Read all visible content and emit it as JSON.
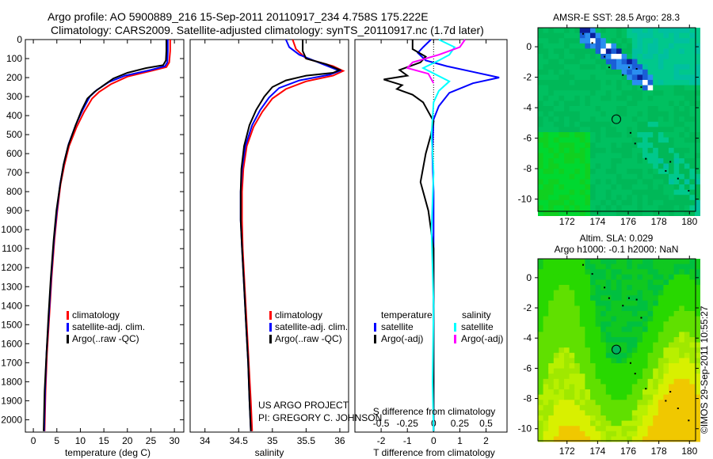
{
  "title_line1": "Argo profile: AO 5900889_216 15-Sep-2011 20110917_234 4.758S 175.222E",
  "title_line2": "Climatology: CARS2009. Satellite-adjusted climatology: synTS_20110917.nc (1.7d later)",
  "credit_line1": "US ARGO PROJECT",
  "credit_line2": "PI: GREGORY C. JOHNSON",
  "timestamp": "©IMOS 29-Sep-2011 10:55:27",
  "colors": {
    "climatology": "#ff0000",
    "satellite": "#0000ff",
    "argo": "#000000",
    "s_satellite": "#00ffff",
    "s_argo": "#ff00ff"
  },
  "chart_data": [
    {
      "type": "line",
      "name": "temperature-profile",
      "xlabel": "temperature (deg C)",
      "ylabel": "",
      "xlim": [
        -1.7,
        32
      ],
      "ylim": [
        2065,
        0
      ],
      "xticks": [
        0,
        5,
        10,
        15,
        20,
        25,
        30
      ],
      "yticks": [
        0,
        100,
        200,
        300,
        400,
        500,
        600,
        700,
        800,
        900,
        1000,
        1100,
        1200,
        1300,
        1400,
        1500,
        1600,
        1700,
        1800,
        1900,
        2000
      ],
      "legend": [
        "climatology",
        "satellite-adj. clim.",
        "Argo(..raw -QC)"
      ],
      "legend_placement": "bottom-center",
      "series": [
        {
          "name": "climatology",
          "color": "#ff0000",
          "points": [
            [
              29.1,
              0
            ],
            [
              29.1,
              60
            ],
            [
              28.9,
              120
            ],
            [
              28.3,
              145
            ],
            [
              25,
              165
            ],
            [
              20,
              195
            ],
            [
              16.5,
              235
            ],
            [
              14,
              275
            ],
            [
              12.5,
              310
            ],
            [
              10.8,
              380
            ],
            [
              9.2,
              460
            ],
            [
              7.6,
              560
            ],
            [
              6.6,
              660
            ],
            [
              5.8,
              760
            ],
            [
              5.1,
              900
            ],
            [
              4.5,
              1050
            ],
            [
              3.9,
              1250
            ],
            [
              3.4,
              1450
            ],
            [
              2.9,
              1650
            ],
            [
              2.6,
              1850
            ],
            [
              2.4,
              2060
            ]
          ]
        },
        {
          "name": "satellite-adj. clim.",
          "color": "#0000ff",
          "points": [
            [
              28.6,
              0
            ],
            [
              28.6,
              60
            ],
            [
              28.5,
              120
            ],
            [
              28.0,
              140
            ],
            [
              25,
              160
            ],
            [
              19.5,
              190
            ],
            [
              16,
              225
            ],
            [
              13.5,
              265
            ],
            [
              12,
              300
            ],
            [
              10.5,
              370
            ],
            [
              9,
              450
            ],
            [
              7.5,
              550
            ],
            [
              6.5,
              650
            ],
            [
              5.7,
              760
            ],
            [
              5,
              900
            ],
            [
              4.4,
              1050
            ],
            [
              3.8,
              1250
            ],
            [
              3.3,
              1450
            ],
            [
              2.8,
              1650
            ],
            [
              2.5,
              1850
            ],
            [
              2.3,
              2060
            ]
          ]
        },
        {
          "name": "Argo(..raw -QC)",
          "color": "#000000",
          "points": [
            [
              28.3,
              0
            ],
            [
              28.3,
              60
            ],
            [
              28.2,
              110
            ],
            [
              27.6,
              135
            ],
            [
              24,
              150
            ],
            [
              20,
              175
            ],
            [
              17,
              205
            ],
            [
              15,
              240
            ],
            [
              13,
              275
            ],
            [
              11.5,
              310
            ],
            [
              10.3,
              370
            ],
            [
              9,
              450
            ],
            [
              7.4,
              560
            ],
            [
              6.4,
              660
            ],
            [
              5.6,
              780
            ],
            [
              4.9,
              900
            ],
            [
              4.3,
              1060
            ],
            [
              3.7,
              1260
            ],
            [
              3.2,
              1460
            ],
            [
              2.8,
              1650
            ],
            [
              2.4,
              1850
            ],
            [
              2.2,
              2060
            ]
          ]
        }
      ]
    },
    {
      "type": "line",
      "name": "salinity-profile",
      "xlabel": "salinity",
      "xlim": [
        33.78,
        36.13
      ],
      "ylim": [
        2065,
        0
      ],
      "xticks": [
        34,
        34.5,
        35,
        35.5,
        36
      ],
      "legend": [
        "climatology",
        "satellite-adj. clim.",
        "Argo(..raw -QC)"
      ],
      "legend_placement": "bottom-center",
      "series": [
        {
          "name": "climatology",
          "color": "#ff0000",
          "points": [
            [
              35.3,
              0
            ],
            [
              35.35,
              50
            ],
            [
              35.5,
              100
            ],
            [
              35.9,
              140
            ],
            [
              36.05,
              165
            ],
            [
              35.9,
              190
            ],
            [
              35.5,
              220
            ],
            [
              35.2,
              260
            ],
            [
              35.0,
              310
            ],
            [
              34.85,
              380
            ],
            [
              34.72,
              460
            ],
            [
              34.62,
              560
            ],
            [
              34.57,
              680
            ],
            [
              34.55,
              800
            ],
            [
              34.55,
              950
            ],
            [
              34.56,
              1100
            ],
            [
              34.59,
              1300
            ],
            [
              34.62,
              1500
            ],
            [
              34.65,
              1700
            ],
            [
              34.68,
              1900
            ],
            [
              34.7,
              2060
            ]
          ]
        },
        {
          "name": "satellite-adj. clim.",
          "color": "#0000ff",
          "points": [
            [
              35.2,
              0
            ],
            [
              35.25,
              40
            ],
            [
              35.4,
              80
            ],
            [
              35.75,
              130
            ],
            [
              36.0,
              165
            ],
            [
              35.85,
              185
            ],
            [
              35.4,
              215
            ],
            [
              35.1,
              255
            ],
            [
              34.95,
              305
            ],
            [
              34.82,
              370
            ],
            [
              34.7,
              450
            ],
            [
              34.6,
              560
            ],
            [
              34.55,
              680
            ],
            [
              34.53,
              800
            ],
            [
              34.53,
              950
            ],
            [
              34.55,
              1100
            ],
            [
              34.58,
              1300
            ],
            [
              34.61,
              1500
            ],
            [
              34.64,
              1700
            ],
            [
              34.66,
              1900
            ],
            [
              34.68,
              2060
            ]
          ]
        },
        {
          "name": "Argo(..raw -QC)",
          "color": "#000000",
          "points": [
            [
              35.45,
              0
            ],
            [
              35.45,
              60
            ],
            [
              35.5,
              100
            ],
            [
              35.8,
              130
            ],
            [
              36.0,
              160
            ],
            [
              35.9,
              175
            ],
            [
              35.5,
              190
            ],
            [
              35.2,
              215
            ],
            [
              35.0,
              250
            ],
            [
              34.88,
              300
            ],
            [
              34.76,
              370
            ],
            [
              34.66,
              450
            ],
            [
              34.58,
              560
            ],
            [
              34.54,
              680
            ],
            [
              34.53,
              800
            ],
            [
              34.53,
              950
            ],
            [
              34.55,
              1100
            ],
            [
              34.58,
              1300
            ],
            [
              34.61,
              1500
            ],
            [
              34.64,
              1700
            ],
            [
              34.66,
              1900
            ],
            [
              34.68,
              2060
            ]
          ]
        }
      ]
    },
    {
      "type": "line",
      "name": "difference-profile",
      "xlabel": "T difference from climatology",
      "x2label": "S difference from climatology",
      "xlim": [
        -3,
        2.8
      ],
      "ylim": [
        2065,
        0
      ],
      "xticks": [
        -2,
        -1,
        0,
        1,
        2
      ],
      "x2ticks": [
        -0.5,
        -0.25,
        0,
        0.25,
        0.5
      ],
      "legend_headers": [
        "temperature",
        "salinity"
      ],
      "legend": [
        "satellite",
        "Argo(-adj)",
        "satellite",
        "Argo(-adj)"
      ],
      "legend_placement": "bottom-center",
      "series": [
        {
          "name": "T satellite",
          "color": "#0000ff",
          "points": [
            [
              -0.1,
              0
            ],
            [
              -0.4,
              40
            ],
            [
              -0.6,
              70
            ],
            [
              -0.3,
              110
            ],
            [
              0.5,
              140
            ],
            [
              1.5,
              170
            ],
            [
              2.5,
              200
            ],
            [
              1.5,
              230
            ],
            [
              0.6,
              280
            ],
            [
              0.2,
              350
            ],
            [
              0,
              420
            ],
            [
              -0.05,
              600
            ],
            [
              0,
              800
            ],
            [
              0,
              1000
            ],
            [
              0,
              1400
            ],
            [
              0,
              2060
            ]
          ]
        },
        {
          "name": "T Argo(-adj)",
          "color": "#000000",
          "points": [
            [
              -0.8,
              0
            ],
            [
              -0.8,
              50
            ],
            [
              -0.3,
              90
            ],
            [
              -0.5,
              120
            ],
            [
              -1.3,
              160
            ],
            [
              -1.0,
              190
            ],
            [
              -1.9,
              210
            ],
            [
              -1.2,
              240
            ],
            [
              -1.4,
              260
            ],
            [
              -0.8,
              290
            ],
            [
              -0.4,
              330
            ],
            [
              -0.2,
              380
            ],
            [
              0,
              430
            ],
            [
              -0.1,
              500
            ],
            [
              -0.3,
              600
            ],
            [
              -0.5,
              750
            ],
            [
              -0.2,
              900
            ],
            [
              0,
              1100
            ],
            [
              0,
              2060
            ]
          ]
        },
        {
          "name": "S satellite",
          "color": "#00ffff",
          "points": [
            [
              0.05,
              0
            ],
            [
              0.2,
              40
            ],
            [
              0.15,
              80
            ],
            [
              0.05,
              110
            ],
            [
              -0.1,
              150
            ],
            [
              0.15,
              220
            ],
            [
              0.05,
              270
            ],
            [
              0,
              330
            ],
            [
              -0.02,
              500
            ],
            [
              0,
              700
            ],
            [
              -0.02,
              1000
            ],
            [
              0,
              1400
            ],
            [
              -0.01,
              1800
            ],
            [
              0,
              2060
            ]
          ]
        },
        {
          "name": "S Argo(-adj)",
          "color": "#ff00ff",
          "points": [
            [
              0.3,
              0
            ],
            [
              0.25,
              40
            ],
            [
              0.05,
              80
            ],
            [
              -0.2,
              120
            ],
            [
              -0.25,
              150
            ],
            [
              -0.05,
              180
            ],
            [
              0,
              230
            ]
          ]
        }
      ]
    },
    {
      "type": "heatmap",
      "name": "sst-map",
      "title": "AMSR-E SST: 28.5 Argo: 28.3",
      "xlim": [
        170.1,
        180.4
      ],
      "ylim": [
        -10.8,
        1.25
      ],
      "xticks": [
        172,
        174,
        176,
        178,
        180
      ],
      "yticks": [
        0,
        -2,
        -4,
        -6,
        -8,
        -10
      ],
      "float_position": [
        175.222,
        -4.758
      ]
    },
    {
      "type": "heatmap",
      "name": "sla-map",
      "title": "Altim. SLA: 0.029",
      "subtitle": "Argo h1000: -0.1 h2000: NaN",
      "xlim": [
        170.1,
        180.4
      ],
      "ylim": [
        -10.8,
        1.25
      ],
      "xticks": [
        172,
        174,
        176,
        178,
        180
      ],
      "yticks": [
        0,
        -2,
        -4,
        -6,
        -8,
        -10
      ],
      "float_position": [
        175.222,
        -4.758
      ]
    }
  ]
}
